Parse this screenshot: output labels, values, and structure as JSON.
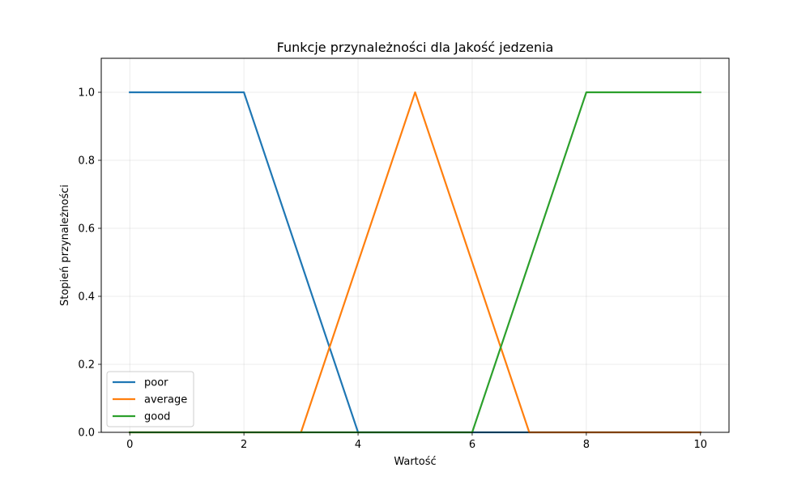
{
  "chart_data": {
    "type": "line",
    "title": "Funkcje przynależności dla Jakość jedzenia",
    "xlabel": "Wartość",
    "ylabel": "Stopień przynależności",
    "xlim": [
      -0.5,
      10.5
    ],
    "ylim": [
      0,
      1.1
    ],
    "xticks": [
      0,
      2,
      4,
      6,
      8,
      10
    ],
    "yticks": [
      0.0,
      0.2,
      0.4,
      0.6,
      0.8,
      1.0
    ],
    "xtick_labels": [
      "0",
      "2",
      "4",
      "6",
      "8",
      "10"
    ],
    "ytick_labels": [
      "0.0",
      "0.2",
      "0.4",
      "0.6",
      "0.8",
      "1.0"
    ],
    "grid": true,
    "legend_position": "lower-left",
    "series": [
      {
        "name": "poor",
        "color": "#1f77b4",
        "x": [
          0,
          2,
          4,
          10
        ],
        "y": [
          1,
          1,
          0,
          0
        ]
      },
      {
        "name": "average",
        "color": "#ff7f0e",
        "x": [
          0,
          3,
          5,
          7,
          10
        ],
        "y": [
          0,
          0,
          1,
          0,
          0
        ]
      },
      {
        "name": "good",
        "color": "#2ca02c",
        "x": [
          0,
          6,
          8,
          10
        ],
        "y": [
          0,
          0,
          1,
          1
        ]
      }
    ]
  }
}
